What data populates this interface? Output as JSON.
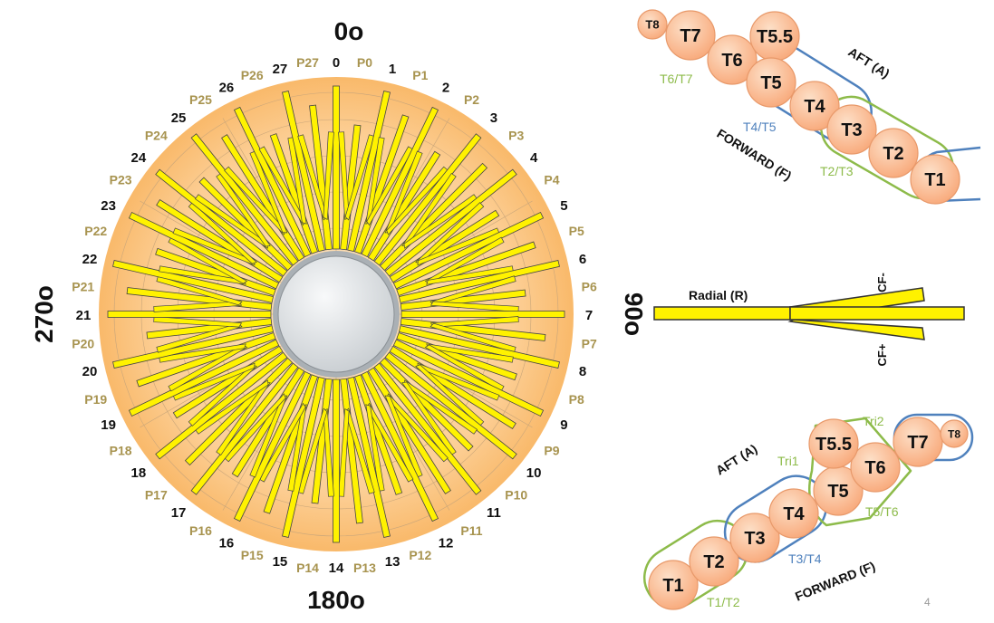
{
  "wheel": {
    "angle_labels": {
      "top": "0o",
      "right": "90o",
      "bottom": "180o",
      "left": "270o"
    },
    "number_labels": [
      "0",
      "1",
      "2",
      "3",
      "4",
      "5",
      "6",
      "7",
      "8",
      "9",
      "10",
      "11",
      "12",
      "13",
      "14",
      "15",
      "16",
      "17",
      "18",
      "19",
      "20",
      "21",
      "22",
      "23",
      "24",
      "25",
      "26",
      "27"
    ],
    "p_labels": [
      "P0",
      "P1",
      "P2",
      "P3",
      "P4",
      "P5",
      "P6",
      "P7",
      "P8",
      "P9",
      "P10",
      "P11",
      "P12",
      "P13",
      "P14",
      "P15",
      "P16",
      "P17",
      "P18",
      "P19",
      "P20",
      "P21",
      "P22",
      "P23",
      "P24",
      "P25",
      "P26",
      "P27"
    ],
    "colors": {
      "disk": "#fbc98a",
      "disk_edge": "#f6b46a",
      "vane": "#fff200",
      "vane_edge": "#444444",
      "hub": "#e7eaec",
      "number": "#111111",
      "p_label": "#a89450"
    }
  },
  "legend_vane": {
    "radial_label": "Radial (R)",
    "cf_minus_label": "CF-",
    "cf_plus_label": "CF+"
  },
  "top_cluster": {
    "aft_label": "AFT (A)",
    "forward_label": "FORWARD (F)",
    "nodes": [
      "T8",
      "T7",
      "T6",
      "T5.5",
      "T5",
      "T4",
      "T3",
      "T2",
      "T1"
    ],
    "group_labels": {
      "t6t7": "T6/T7",
      "t4t5": "T4/T5",
      "t2t3": "T2/T3"
    }
  },
  "bottom_cluster": {
    "aft_label": "AFT (A)",
    "forward_label": "FORWARD (F)",
    "nodes": [
      "T1",
      "T2",
      "T3",
      "T4",
      "T5",
      "T6",
      "T5.5",
      "T7",
      "T8"
    ],
    "group_labels": {
      "t1t2": "T1/T2",
      "t3t4": "T3/T4",
      "t5t6": "T5/T6",
      "tri1": "Tri1",
      "tri2": "Tri2"
    }
  },
  "colors": {
    "node_fill": "#fbb98d",
    "node_stroke": "#e8996a",
    "green": "#8dbb4a",
    "blue": "#4f81bd"
  },
  "slide_number": "4"
}
